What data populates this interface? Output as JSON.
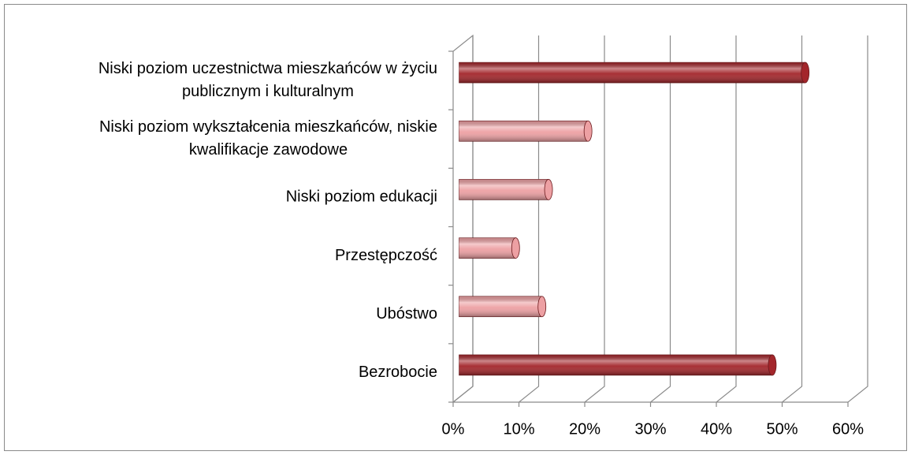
{
  "chart_data": {
    "type": "bar3d",
    "categories": [
      [
        "Niski poziom uczestnictwa mieszkańców w życiu",
        "publicznym i kulturalnym"
      ],
      [
        "Niski poziom wykształcenia mieszkańców, niskie",
        "kwalifikacje zawodowe"
      ],
      [
        "Niski poziom edukacji"
      ],
      [
        "Przestępczość"
      ],
      [
        "Ubóstwo"
      ],
      [
        "Bezrobocie"
      ]
    ],
    "values": [
      52,
      19,
      13,
      8,
      12,
      47
    ],
    "colors": [
      "#a3262b",
      "#eda0a3",
      "#eda0a3",
      "#eda0a3",
      "#eda0a3",
      "#a3262b"
    ],
    "xlim": [
      0,
      60
    ],
    "xticks": [
      {
        "value": 0,
        "label": "0%"
      },
      {
        "value": 10,
        "label": "10%"
      },
      {
        "value": 20,
        "label": "20%"
      },
      {
        "value": 30,
        "label": "30%"
      },
      {
        "value": 40,
        "label": "40%"
      },
      {
        "value": 50,
        "label": "50%"
      },
      {
        "value": 60,
        "label": "60%"
      }
    ],
    "grid": true
  }
}
